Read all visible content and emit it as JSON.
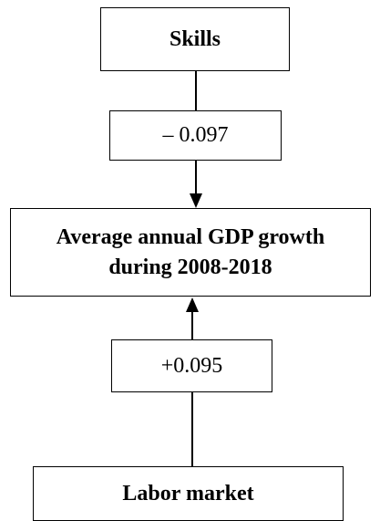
{
  "diagram": {
    "nodes": {
      "skills": "Skills",
      "coef_skills": "– 0.097",
      "gdp_line1": "Average annual GDP growth",
      "gdp_line2": "during 2008-2018",
      "coef_labor": "+0.095",
      "labor_market": "Labor market"
    },
    "edges": [
      {
        "from": "skills",
        "to": "gdp",
        "coefficient": -0.097
      },
      {
        "from": "labor_market",
        "to": "gdp",
        "coefficient": 0.095
      }
    ],
    "colors": {
      "line": "#000000",
      "box_fill": "#ffffff"
    }
  }
}
